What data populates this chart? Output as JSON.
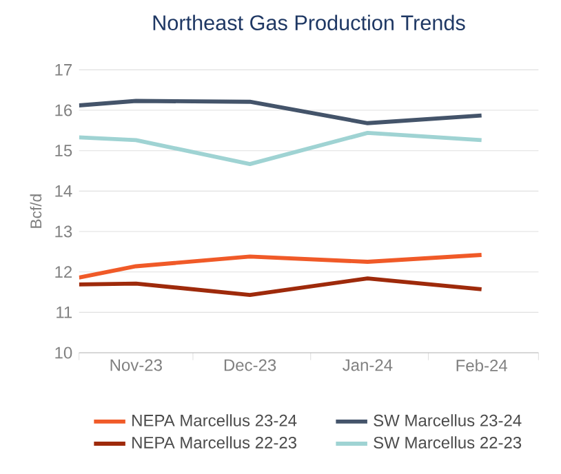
{
  "chart_data": {
    "type": "line",
    "title": "Northeast Gas Production Trends",
    "ylabel": "Bcf/d",
    "x": [
      "2023-11-01",
      "2023-11-16",
      "2023-12-16",
      "2024-01-16",
      "2024-02-15"
    ],
    "xlim": [
      "2023-11-01",
      "2024-03-01"
    ],
    "xticks": [
      {
        "value": "2023-11-01",
        "label": null
      },
      {
        "value": "2023-11-16",
        "label": "Nov-23"
      },
      {
        "value": "2023-12-01",
        "label": null
      },
      {
        "value": "2023-12-16",
        "label": "Dec-23"
      },
      {
        "value": "2024-01-01",
        "label": null
      },
      {
        "value": "2024-01-16",
        "label": "Jan-24"
      },
      {
        "value": "2024-02-01",
        "label": null
      },
      {
        "value": "2024-02-15",
        "label": "Feb-24"
      },
      {
        "value": "2024-03-01",
        "label": null
      }
    ],
    "ylim": [
      10,
      17
    ],
    "yticks": [
      10,
      11,
      12,
      13,
      14,
      15,
      16,
      17
    ],
    "grid": "y",
    "legend": "bottom",
    "series": [
      {
        "name": "NEPA Marcellus 23-24",
        "color": "#f05a28",
        "values": [
          11.86,
          12.14,
          12.38,
          12.25,
          12.42
        ]
      },
      {
        "name": "SW Marcellus 23-24",
        "color": "#44546a",
        "values": [
          16.12,
          16.23,
          16.21,
          15.68,
          15.87
        ]
      },
      {
        "name": "NEPA Marcellus 22-23",
        "color": "#9e2a0b",
        "values": [
          11.69,
          11.71,
          11.43,
          11.84,
          11.57
        ]
      },
      {
        "name": "SW Marcellus 22-23",
        "color": "#9fd3d3",
        "values": [
          15.33,
          15.26,
          14.67,
          15.44,
          15.26
        ]
      }
    ]
  }
}
